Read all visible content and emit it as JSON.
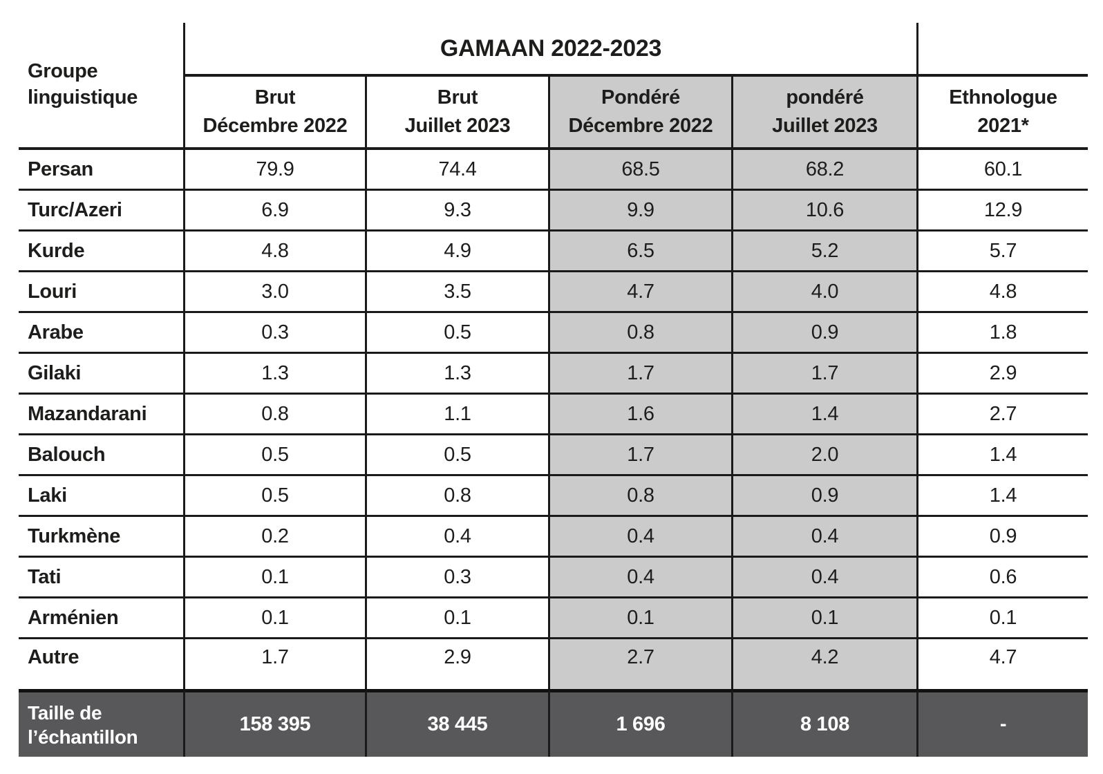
{
  "chart_data": {
    "type": "table",
    "corner_header": "Groupe linguistique",
    "group_header": "GAMAAN 2022-2023",
    "columns": [
      {
        "lines": [
          "Brut",
          "Décembre 2022"
        ],
        "shaded": false
      },
      {
        "lines": [
          "Brut",
          "Juillet 2023"
        ],
        "shaded": false
      },
      {
        "lines": [
          "Pondéré",
          "Décembre 2022"
        ],
        "shaded": true
      },
      {
        "lines": [
          "pondéré",
          "Juillet 2023"
        ],
        "shaded": true
      },
      {
        "lines": [
          "Ethnologue",
          "2021*"
        ],
        "shaded": false
      }
    ],
    "rows": [
      {
        "label": "Persan",
        "values": [
          "79.9",
          "74.4",
          "68.5",
          "68.2",
          "60.1"
        ]
      },
      {
        "label": "Turc/Azeri",
        "values": [
          "6.9",
          "9.3",
          "9.9",
          "10.6",
          "12.9"
        ]
      },
      {
        "label": "Kurde",
        "values": [
          "4.8",
          "4.9",
          "6.5",
          "5.2",
          "5.7"
        ]
      },
      {
        "label": "Louri",
        "values": [
          "3.0",
          "3.5",
          "4.7",
          "4.0",
          "4.8"
        ]
      },
      {
        "label": "Arabe",
        "values": [
          "0.3",
          "0.5",
          "0.8",
          "0.9",
          "1.8"
        ]
      },
      {
        "label": "Gilaki",
        "values": [
          "1.3",
          "1.3",
          "1.7",
          "1.7",
          "2.9"
        ]
      },
      {
        "label": "Mazandarani",
        "values": [
          "0.8",
          "1.1",
          "1.6",
          "1.4",
          "2.7"
        ]
      },
      {
        "label": "Balouch",
        "values": [
          "0.5",
          "0.5",
          "1.7",
          "2.0",
          "1.4"
        ]
      },
      {
        "label": "Laki",
        "values": [
          "0.5",
          "0.8",
          "0.8",
          "0.9",
          "1.4"
        ]
      },
      {
        "label": "Turkmène",
        "values": [
          "0.2",
          "0.4",
          "0.4",
          "0.4",
          "0.9"
        ]
      },
      {
        "label": "Tati",
        "values": [
          "0.1",
          "0.3",
          "0.4",
          "0.4",
          "0.6"
        ]
      },
      {
        "label": "Arménien",
        "values": [
          "0.1",
          "0.1",
          "0.1",
          "0.1",
          "0.1"
        ]
      },
      {
        "label": "Autre",
        "values": [
          "1.7",
          "2.9",
          "2.7",
          "4.2",
          "4.7"
        ]
      }
    ],
    "footer": {
      "label": "Taille de l’échantillon",
      "values": [
        "158 395",
        "38 445",
        "1 696",
        "8 108",
        "-"
      ]
    },
    "colors": {
      "shaded_column_bg": "#cbcbcb",
      "footer_bg": "#58585a",
      "footer_text": "#ffffff",
      "border": "#1a1a1a",
      "text": "#1d1d1b"
    },
    "layout_hints": {
      "group_header_spans_columns": [
        1,
        2,
        3,
        4
      ],
      "grid": "on",
      "outer_left_right_top_borders": "none"
    }
  }
}
